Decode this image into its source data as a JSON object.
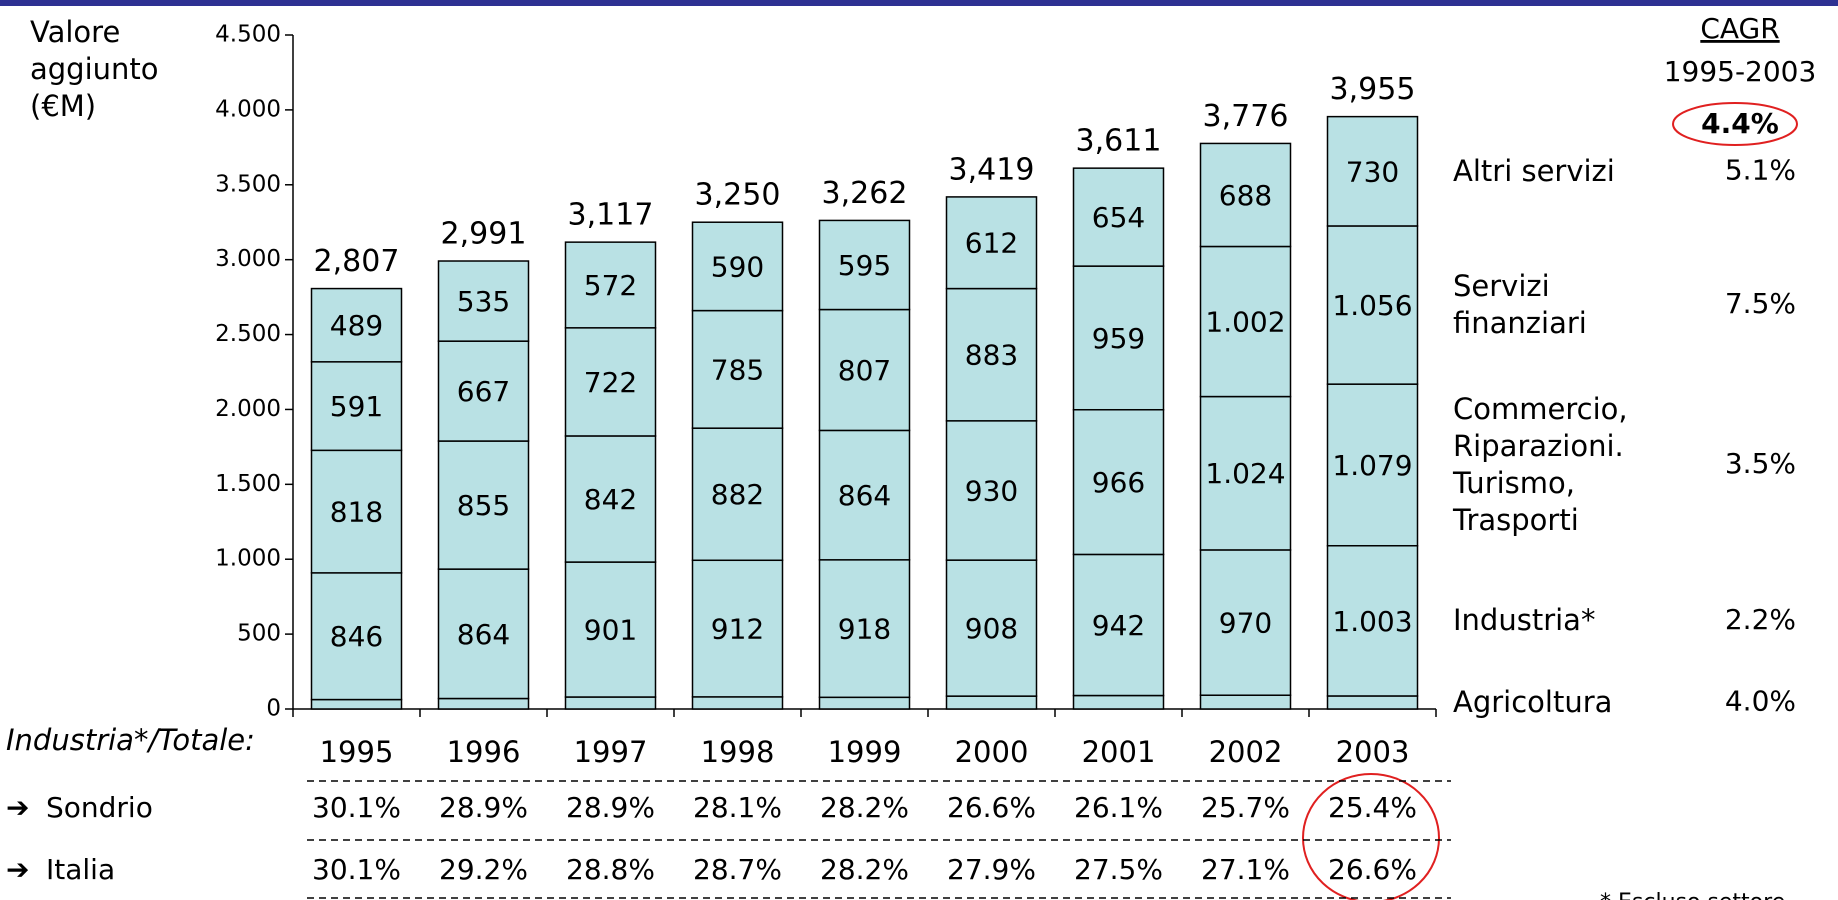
{
  "chart_data": {
    "type": "stacked_bar",
    "ylabel": "Valore\naggiunto\n(€M)",
    "categories": [
      "1995",
      "1996",
      "1997",
      "1998",
      "1999",
      "2000",
      "2001",
      "2002",
      "2003"
    ],
    "ylim": [
      0,
      4500
    ],
    "yticks": [
      0,
      500,
      {
        "value": 1000,
        "label": "1.000"
      },
      {
        "value": 1500,
        "label": "1.500"
      },
      {
        "value": 2000,
        "label": "2.000"
      },
      {
        "value": 2500,
        "label": "2.500"
      },
      {
        "value": 3000,
        "label": "3.000"
      },
      {
        "value": 3500,
        "label": "3.500"
      },
      {
        "value": 4000,
        "label": "4.000"
      },
      {
        "value": 4500,
        "label": "4.500"
      }
    ],
    "color": "#b9e1e4",
    "cagr_title": "CAGR",
    "cagr_period": "1995-2003",
    "cagr_total": {
      "value": 4.4,
      "label": "4.4%"
    },
    "series": [
      {
        "name": "Agricoltura",
        "cagr": {
          "value": 4.0,
          "label": "4.0%"
        },
        "values": [
          63,
          70,
          80,
          81,
          78,
          86,
          90,
          92,
          87
        ]
      },
      {
        "name": "Industria*",
        "cagr": {
          "value": 2.2,
          "label": "2.2%"
        },
        "values": [
          846,
          864,
          901,
          912,
          918,
          908,
          942,
          970,
          1003
        ],
        "value_labels": [
          "846",
          "864",
          "901",
          "912",
          "918",
          "908",
          "942",
          "970",
          "1.003"
        ]
      },
      {
        "name": "Commercio,\nRiparazioni.\nTurismo,\nTrasporti",
        "cagr": {
          "value": 3.5,
          "label": "3.5%"
        },
        "values": [
          818,
          855,
          842,
          882,
          864,
          930,
          966,
          1024,
          1079
        ],
        "value_labels": [
          "818",
          "855",
          "842",
          "882",
          "864",
          "930",
          "966",
          "1.024",
          "1.079"
        ]
      },
      {
        "name": "Servizi\nfinanziari",
        "cagr": {
          "value": 7.5,
          "label": "7.5%"
        },
        "values": [
          591,
          667,
          722,
          785,
          807,
          883,
          959,
          1002,
          1056
        ],
        "value_labels": [
          "591",
          "667",
          "722",
          "785",
          "807",
          "883",
          "959",
          "1.002",
          "1.056"
        ]
      },
      {
        "name": "Altri servizi",
        "cagr": {
          "value": 5.1,
          "label": "5.1%"
        },
        "values": [
          489,
          535,
          572,
          590,
          595,
          612,
          654,
          688,
          730
        ]
      }
    ],
    "totals": {
      "values": [
        2807,
        2991,
        3117,
        3250,
        3262,
        3419,
        3611,
        3776,
        3955
      ],
      "value_labels": [
        "2,807",
        "2,991",
        "3,117",
        "3,250",
        "3,262",
        "3,419",
        "3,611",
        "3,776",
        "3,955"
      ]
    },
    "table": {
      "title": "Industria*/Totale:",
      "rows": [
        {
          "name": "Sondrio",
          "values": [
            30.1,
            28.9,
            28.9,
            28.1,
            28.2,
            26.6,
            26.1,
            25.7,
            25.4
          ],
          "value_labels": [
            "30.1%",
            "28.9%",
            "28.9%",
            "28.1%",
            "28.2%",
            "26.6%",
            "26.1%",
            "25.7%",
            "25.4%"
          ]
        },
        {
          "name": "Italia",
          "values": [
            30.1,
            29.2,
            28.8,
            28.7,
            28.2,
            27.9,
            27.5,
            27.1,
            26.6
          ],
          "value_labels": [
            "30.1%",
            "29.2%",
            "28.8%",
            "28.7%",
            "28.2%",
            "27.9%",
            "27.5%",
            "27.1%",
            "26.6%"
          ]
        }
      ]
    },
    "footnote": "* Escluso settore"
  }
}
